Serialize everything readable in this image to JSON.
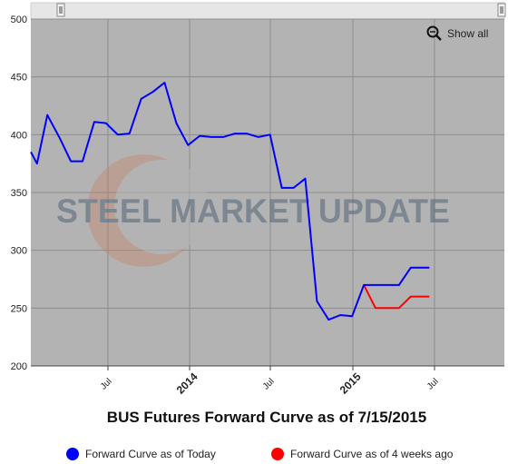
{
  "chart_data": {
    "type": "line",
    "title": "BUS Futures Forward Curve as of 7/15/2015",
    "ylim": [
      200,
      500
    ],
    "yticks": [
      200,
      250,
      300,
      350,
      400,
      450,
      500
    ],
    "xticks": [
      {
        "label": "Jul",
        "year": false
      },
      {
        "label": "2014",
        "year": true
      },
      {
        "label": "Jul",
        "year": false
      },
      {
        "label": "2015",
        "year": true
      },
      {
        "label": "Jul",
        "year": false
      }
    ],
    "grid": true,
    "legend_position": "bottom",
    "show_all_label": "Show all",
    "watermark": "STEEL MARKET UPDATE",
    "series": [
      {
        "name": "Forward Curve as of Today",
        "color": "#0000ff",
        "points": [
          {
            "month": 0,
            "value": 385
          },
          {
            "month": 0.45,
            "value": 375
          },
          {
            "month": 1.2,
            "value": 417
          },
          {
            "month": 2.1,
            "value": 397
          },
          {
            "month": 2.9,
            "value": 377
          },
          {
            "month": 3.75,
            "value": 377
          },
          {
            "month": 4.6,
            "value": 411
          },
          {
            "month": 5.45,
            "value": 410
          },
          {
            "month": 6.3,
            "value": 400
          },
          {
            "month": 7.15,
            "value": 401
          },
          {
            "month": 8.0,
            "value": 431
          },
          {
            "month": 8.85,
            "value": 437
          },
          {
            "month": 9.7,
            "value": 445
          },
          {
            "month": 10.55,
            "value": 410
          },
          {
            "month": 11.4,
            "value": 391
          },
          {
            "month": 12.25,
            "value": 399
          },
          {
            "month": 13.1,
            "value": 398
          },
          {
            "month": 13.95,
            "value": 398
          },
          {
            "month": 14.8,
            "value": 401
          },
          {
            "month": 15.65,
            "value": 401
          },
          {
            "month": 16.5,
            "value": 398
          },
          {
            "month": 17.35,
            "value": 400
          },
          {
            "month": 18.2,
            "value": 354
          },
          {
            "month": 19.05,
            "value": 354
          },
          {
            "month": 19.9,
            "value": 362
          },
          {
            "month": 20.75,
            "value": 256
          },
          {
            "month": 21.6,
            "value": 240
          },
          {
            "month": 22.45,
            "value": 244
          },
          {
            "month": 23.3,
            "value": 243
          },
          {
            "month": 24.15,
            "value": 270
          },
          {
            "month": 25.0,
            "value": 270
          },
          {
            "month": 25.85,
            "value": 270
          },
          {
            "month": 26.7,
            "value": 270
          },
          {
            "month": 27.55,
            "value": 285
          },
          {
            "month": 28.4,
            "value": 285
          },
          {
            "month": 28.9,
            "value": 285
          }
        ]
      },
      {
        "name": "Forward Curve as of 4 weeks ago",
        "color": "#ff0000",
        "points": [
          {
            "month": 24.15,
            "value": 270
          },
          {
            "month": 25.0,
            "value": 250
          },
          {
            "month": 25.85,
            "value": 250
          },
          {
            "month": 26.7,
            "value": 250
          },
          {
            "month": 27.55,
            "value": 260
          },
          {
            "month": 28.4,
            "value": 260
          },
          {
            "month": 28.9,
            "value": 260
          }
        ]
      }
    ]
  }
}
